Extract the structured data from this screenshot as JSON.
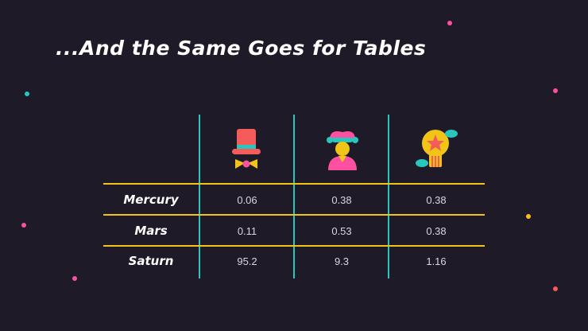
{
  "slide": {
    "title": "...And the Same Goes for Tables"
  },
  "table": {
    "column_icons": [
      "top-hat-bowtie-icon",
      "jester-person-icon",
      "lightbulb-star-icon"
    ],
    "rows": [
      {
        "label": "Mercury",
        "values": [
          "0.06",
          "0.38",
          "0.38"
        ]
      },
      {
        "label": "Mars",
        "values": [
          "0.11",
          "0.53",
          "0.38"
        ]
      },
      {
        "label": "Saturn",
        "values": [
          "95.2",
          "9.3",
          "1.16"
        ]
      }
    ]
  },
  "colors": {
    "background": "#1f1a27",
    "accent_pink": "#ff4fa0",
    "accent_teal": "#27c7be",
    "accent_yellow": "#f2c418",
    "accent_coral": "#f45b5b"
  }
}
